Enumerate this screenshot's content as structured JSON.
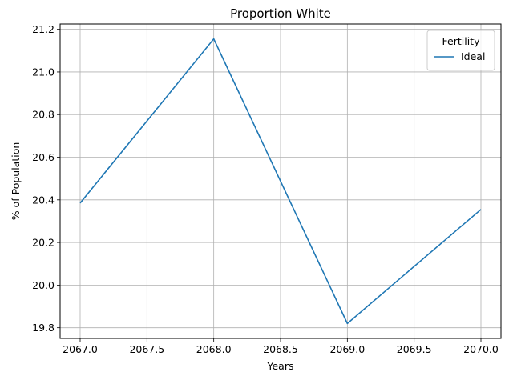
{
  "chart_data": {
    "type": "line",
    "title": "Proportion White",
    "xlabel": "Years",
    "ylabel": "% of Population",
    "xlim": [
      2066.85,
      2070.15
    ],
    "ylim": [
      19.75,
      21.225
    ],
    "x_ticks": [
      2067.0,
      2067.5,
      2068.0,
      2068.5,
      2069.0,
      2069.5,
      2070.0
    ],
    "x_tick_labels": [
      "2067.0",
      "2067.5",
      "2068.0",
      "2068.5",
      "2069.0",
      "2069.5",
      "2070.0"
    ],
    "y_ticks": [
      19.8,
      20.0,
      20.2,
      20.4,
      20.6,
      20.8,
      21.0,
      21.2
    ],
    "y_tick_labels": [
      "19.8",
      "20.0",
      "20.2",
      "20.4",
      "20.6",
      "20.8",
      "21.0",
      "21.2"
    ],
    "grid": true,
    "legend": {
      "title": "Fertility",
      "placement": "top-right"
    },
    "series": [
      {
        "name": "Ideal",
        "color": "#1f77b4",
        "x": [
          2067,
          2068,
          2069,
          2070
        ],
        "y": [
          20.385,
          21.155,
          19.82,
          20.355
        ]
      }
    ]
  }
}
